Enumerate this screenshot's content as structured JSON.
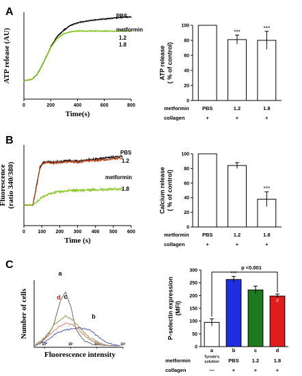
{
  "panels": {
    "A": "A",
    "B": "B",
    "C": "C"
  },
  "chart_data": [
    {
      "id": "A-trace",
      "type": "line",
      "xlabel": "Time(s)",
      "ylabel": "ATP release (AU)",
      "xlim": [
        0,
        800
      ],
      "xticks": [
        "0",
        "200",
        "400",
        "600",
        "800"
      ],
      "grid": false,
      "series": [
        {
          "name": "PBS",
          "color": "#111111",
          "x": [
            0,
            60,
            100,
            150,
            200,
            250,
            300,
            350,
            400,
            450,
            500,
            550,
            600,
            650,
            700,
            750,
            800
          ],
          "y": [
            0.0,
            0.02,
            0.1,
            0.3,
            0.53,
            0.7,
            0.8,
            0.87,
            0.91,
            0.93,
            0.95,
            0.96,
            0.97,
            0.98,
            0.99,
            1.0,
            1.0
          ]
        },
        {
          "name": "metformin",
          "color": "#88c825",
          "x": [
            0,
            60,
            100,
            150,
            200,
            250,
            300,
            350,
            400,
            450,
            500,
            550,
            600,
            650,
            700,
            750,
            800
          ],
          "y": [
            0.0,
            0.02,
            0.1,
            0.3,
            0.52,
            0.67,
            0.74,
            0.77,
            0.78,
            0.78,
            0.78,
            0.78,
            0.78,
            0.78,
            0.78,
            0.78,
            0.78
          ]
        }
      ],
      "annotations": [
        "1.2",
        "1.8"
      ]
    },
    {
      "id": "A-bar",
      "type": "bar",
      "ylabel": "ATP release\n( % of control)",
      "ylim": [
        0,
        100
      ],
      "yticks": [
        "0",
        "20",
        "40",
        "60",
        "80",
        "100"
      ],
      "categories": [
        "PBS",
        "1.2",
        "1.8"
      ],
      "values": [
        100,
        81,
        80
      ],
      "errors": [
        0,
        6,
        12
      ],
      "significance": [
        "",
        "***",
        "***"
      ],
      "rows": [
        {
          "label": "metformin",
          "cells": [
            "PBS",
            "1.2",
            "1.8"
          ]
        },
        {
          "label": "collagen",
          "cells": [
            "+",
            "+",
            "+"
          ]
        }
      ]
    },
    {
      "id": "B-trace",
      "type": "line",
      "xlabel": "Time (s)",
      "ylabel": "Fluorescence\n(ratio 340/380)",
      "xlim": [
        0,
        600
      ],
      "xticks": [
        "0",
        "100",
        "200",
        "300",
        "400",
        "500",
        "600"
      ],
      "grid": false,
      "series": [
        {
          "name": "PBS",
          "color": "#111111",
          "x": [
            0,
            50,
            70,
            90,
            110,
            130,
            160,
            200,
            250,
            300,
            350,
            400,
            450,
            500,
            550
          ],
          "y": [
            0.0,
            0.0,
            0.35,
            0.72,
            0.8,
            0.82,
            0.8,
            0.81,
            0.83,
            0.82,
            0.85,
            0.86,
            0.88,
            0.9,
            0.91
          ]
        },
        {
          "name": "1.2",
          "color": "#b5401a",
          "x": [
            0,
            50,
            70,
            90,
            110,
            130,
            160,
            200,
            250,
            300,
            350,
            400,
            450,
            500,
            550
          ],
          "y": [
            0.0,
            0.0,
            0.33,
            0.7,
            0.78,
            0.8,
            0.79,
            0.8,
            0.82,
            0.8,
            0.83,
            0.84,
            0.85,
            0.87,
            0.88
          ]
        },
        {
          "name": "1.8",
          "color": "#88c825",
          "x": [
            0,
            50,
            70,
            100,
            150,
            200,
            250,
            300,
            350,
            400,
            450,
            500,
            550
          ],
          "y": [
            0.0,
            0.0,
            0.05,
            0.15,
            0.22,
            0.25,
            0.27,
            0.28,
            0.28,
            0.29,
            0.29,
            0.3,
            0.3
          ]
        }
      ],
      "annotations": [
        "metformin"
      ]
    },
    {
      "id": "B-bar",
      "type": "bar",
      "ylabel": "Calcium release\n( % of control)",
      "ylim": [
        0,
        100
      ],
      "yticks": [
        "0",
        "20",
        "40",
        "60",
        "80",
        "100"
      ],
      "categories": [
        "PBS",
        "1.2",
        "1.8"
      ],
      "values": [
        100,
        84,
        38
      ],
      "errors": [
        0,
        4,
        10
      ],
      "significance": [
        "",
        "",
        "***"
      ],
      "rows": [
        {
          "label": "metformin",
          "cells": [
            "PBS",
            "1.2",
            "1.8"
          ]
        },
        {
          "label": "collagen",
          "cells": [
            "+",
            "+",
            "+"
          ]
        }
      ]
    },
    {
      "id": "C-hist",
      "type": "line",
      "xlabel": "Fluorescence intensity",
      "ylabel": "Number of cells",
      "xscale": "log",
      "xticks": [
        "10⁰",
        "10¹",
        "10²",
        "10³"
      ],
      "series": [
        {
          "name": "a",
          "color": "#666666",
          "x": [
            0.3,
            0.6,
            1.0,
            1.3,
            1.5,
            1.7,
            1.9,
            2.2,
            2.5,
            3.0,
            3.5
          ],
          "y": [
            0.0,
            0.08,
            0.32,
            0.82,
            1.0,
            0.72,
            0.3,
            0.1,
            0.03,
            0.01,
            0.0
          ]
        },
        {
          "name": "b",
          "color": "#4a58a8",
          "x": [
            0.3,
            0.8,
            1.2,
            1.6,
            2.0,
            2.4,
            2.8,
            3.2,
            3.6
          ],
          "y": [
            0.0,
            0.1,
            0.25,
            0.3,
            0.33,
            0.3,
            0.15,
            0.04,
            0.0
          ]
        },
        {
          "name": "c",
          "color": "#9a9a55",
          "x": [
            0.3,
            0.7,
            1.1,
            1.5,
            1.8,
            2.1,
            2.4,
            2.8,
            3.2
          ],
          "y": [
            0.0,
            0.15,
            0.4,
            0.55,
            0.47,
            0.3,
            0.16,
            0.05,
            0.0
          ]
        },
        {
          "name": "d",
          "color": "#c8826a",
          "x": [
            0.3,
            0.7,
            1.1,
            1.5,
            1.8,
            2.1,
            2.4,
            2.8,
            3.2
          ],
          "y": [
            0.0,
            0.12,
            0.3,
            0.42,
            0.38,
            0.25,
            0.12,
            0.04,
            0.0
          ]
        }
      ]
    },
    {
      "id": "C-bar",
      "type": "bar",
      "ylabel": "P-selectin expression\n(MFI)",
      "ylim": [
        0,
        300
      ],
      "yticks": [
        "0",
        "50",
        "100",
        "150",
        "200",
        "250",
        "300"
      ],
      "categories": [
        "a",
        "b",
        "c",
        "d"
      ],
      "values": [
        95,
        263,
        222,
        198
      ],
      "errors": [
        14,
        12,
        15,
        8
      ],
      "colors": [
        "#ffffff",
        "#1f2fe0",
        "#1e7a1e",
        "#e01c1c"
      ],
      "significance": [
        "",
        "***",
        "",
        "#"
      ],
      "bracket_label": "p <0.001",
      "rows": [
        {
          "label": "metformin",
          "cells": [
            "Tyrode's\nsolution",
            "PBS",
            "1.2",
            "1.8"
          ]
        },
        {
          "label": "collagen",
          "cells": [
            "—",
            "+",
            "+",
            "+"
          ]
        }
      ]
    }
  ]
}
